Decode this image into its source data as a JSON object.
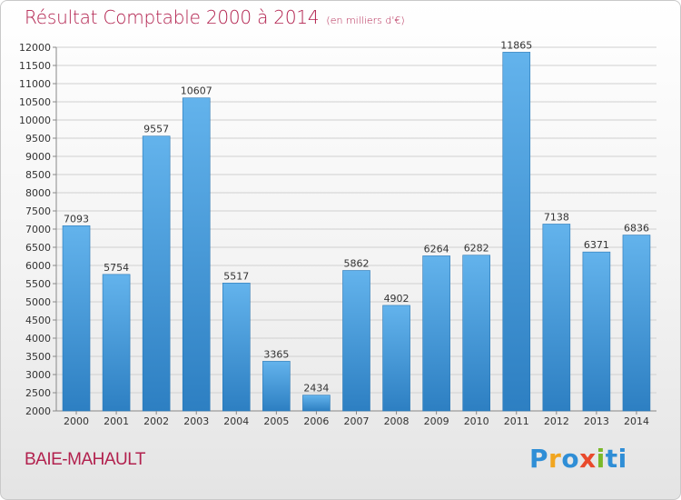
{
  "header": {
    "title": "Résultat Comptable 2000 à 2014",
    "unit": "(en milliers d'€)"
  },
  "footer": {
    "place": "BAIE-MAHAULT",
    "logo": "Proxiti",
    "logo_colors": [
      "#2f8ed6",
      "#f1a51f",
      "#2f8ed6",
      "#e94a2c",
      "#7ab929",
      "#2f8ed6"
    ]
  },
  "colors": {
    "accent": "#b2214e",
    "bar_top": "#63b3ec",
    "bar_bottom": "#2d7fc2",
    "grid": "#d0d0d0"
  },
  "chart_data": {
    "type": "bar",
    "title": "Résultat Comptable 2000 à 2014",
    "subtitle": "(en milliers d'€)",
    "categories": [
      "2000",
      "2001",
      "2002",
      "2003",
      "2004",
      "2005",
      "2006",
      "2007",
      "2008",
      "2009",
      "2010",
      "2011",
      "2012",
      "2013",
      "2014"
    ],
    "values": [
      7093,
      5754,
      9557,
      10607,
      5517,
      3365,
      2434,
      5862,
      4902,
      6264,
      6282,
      11865,
      7138,
      6371,
      6836
    ],
    "ylim": [
      2000,
      12000
    ],
    "ytick_step": 500,
    "grid": true,
    "xlabel": "",
    "ylabel": ""
  }
}
